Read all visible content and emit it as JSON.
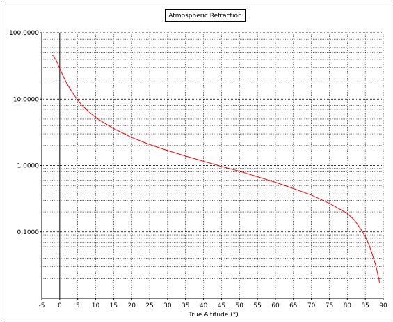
{
  "chart_data": {
    "type": "line",
    "title": "Atmospheric Refraction",
    "xlabel": "True Altitude (°)",
    "ylabel": "",
    "xlim": [
      -5,
      90
    ],
    "ylim": [
      0.01,
      100
    ],
    "yscale": "log",
    "grid": true,
    "x_ticks": [
      "-5",
      "0",
      "5",
      "10",
      "15",
      "20",
      "25",
      "30",
      "35",
      "40",
      "45",
      "50",
      "55",
      "60",
      "65",
      "70",
      "75",
      "80",
      "85",
      "90"
    ],
    "y_ticks": [
      "100,0000",
      "10,0000",
      "1,0000",
      "0,1000"
    ],
    "colors": {
      "series": "#ff0000",
      "grid": "#000000",
      "axis": "#000000"
    },
    "series": [
      {
        "x": [
          -2,
          -1,
          0,
          1,
          2,
          3,
          4,
          5,
          6,
          8,
          10,
          12,
          15,
          20,
          25,
          30,
          35,
          40,
          45,
          50,
          55,
          60,
          65,
          70,
          75,
          80,
          82,
          84,
          85,
          86,
          87,
          88,
          89
        ],
        "y": [
          46,
          39,
          29,
          22,
          17,
          14,
          11.5,
          9.7,
          8.3,
          6.5,
          5.3,
          4.5,
          3.6,
          2.65,
          2.07,
          1.68,
          1.39,
          1.16,
          0.97,
          0.82,
          0.68,
          0.56,
          0.45,
          0.36,
          0.27,
          0.19,
          0.15,
          0.105,
          0.085,
          0.065,
          0.045,
          0.03,
          0.017
        ]
      }
    ]
  }
}
